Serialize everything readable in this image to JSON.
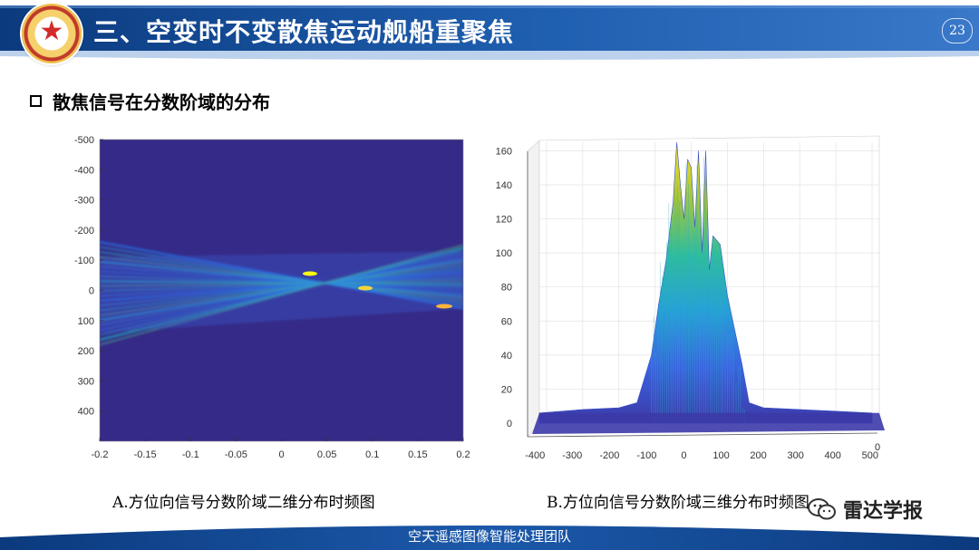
{
  "header": {
    "title": "三、空变时不变散焦运动舰船重聚焦",
    "page_number": "23",
    "colors": {
      "banner_dark": "#0b3a7e",
      "banner_light": "#3f7fd0",
      "title_text": "#ffffff"
    }
  },
  "section": {
    "bullet_text": "散焦信号在分数阶域的分布"
  },
  "figure_a": {
    "caption": "A.方位向信号分数阶域二维分布时频图",
    "x_ticks": [
      "-0.2",
      "-0.15",
      "-0.1",
      "-0.05",
      "0",
      "0.05",
      "0.1",
      "0.15",
      "0.2"
    ],
    "y_ticks": [
      "-500",
      "-400",
      "-300",
      "-200",
      "-100",
      "0",
      "100",
      "200",
      "300",
      "400"
    ]
  },
  "figure_b": {
    "caption": "B.方位向信号分数阶域三维分布时频图",
    "y_ticks": [
      "0",
      "20",
      "40",
      "60",
      "80",
      "100",
      "120",
      "140",
      "160"
    ],
    "x_ticks": [
      "-400",
      "-300",
      "-200",
      "-100",
      "0",
      "100",
      "200",
      "300",
      "400",
      "500"
    ],
    "corner_tick": "0"
  },
  "chart_data": [
    {
      "type": "heatmap",
      "title": "",
      "xlabel": "",
      "ylabel": "",
      "xlim": [
        -0.2,
        0.2
      ],
      "ylim": [
        -500,
        500
      ],
      "y_reversed": true,
      "colormap": "parula",
      "background_color": "#352a87",
      "description_values": {
        "fan_left_y_range": [
          -160,
          180
        ],
        "fan_right_y_range": [
          -150,
          60
        ],
        "crossing_points": [
          [
            0.03,
            -50
          ],
          [
            0.09,
            0
          ],
          [
            0.18,
            40
          ]
        ]
      }
    },
    {
      "type": "area",
      "title": "",
      "xlabel": "",
      "ylabel": "",
      "xlim": [
        -420,
        520
      ],
      "ylim": [
        0,
        165
      ],
      "x": [
        -420,
        -300,
        -200,
        -150,
        -110,
        -90,
        -70,
        -50,
        -40,
        -30,
        -20,
        -10,
        0,
        10,
        20,
        30,
        40,
        50,
        60,
        80,
        100,
        120,
        140,
        160,
        200,
        300,
        400,
        500
      ],
      "y": [
        6,
        8,
        9,
        12,
        40,
        70,
        95,
        130,
        165,
        140,
        120,
        155,
        150,
        115,
        160,
        100,
        160,
        90,
        110,
        105,
        75,
        55,
        35,
        12,
        9,
        8,
        7,
        6
      ]
    }
  ],
  "watermark": {
    "text": "雷达学报",
    "icon": "wechat-icon"
  },
  "footer": {
    "text": "空天遥感图像智能处理团队"
  }
}
